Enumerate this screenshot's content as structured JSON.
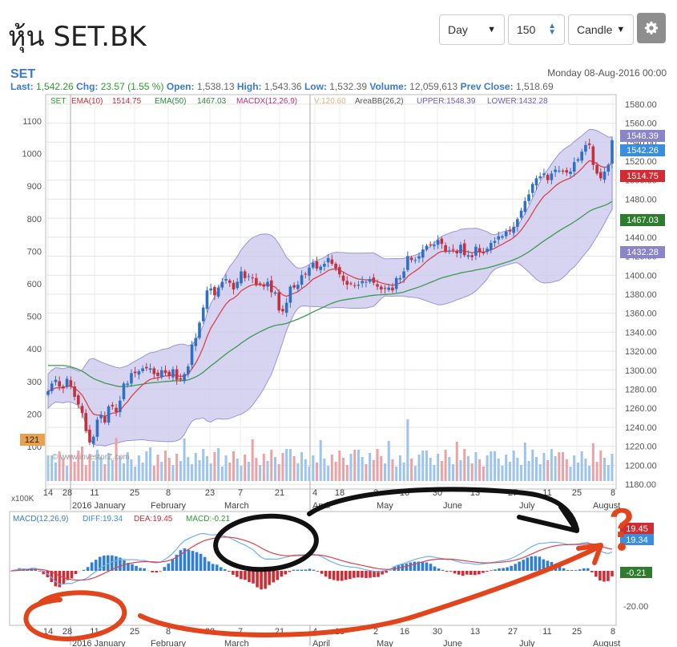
{
  "header": {
    "title": "หุ้น SET.BK",
    "period": "Day",
    "count": "150",
    "chart_style": "Candle"
  },
  "quote": {
    "symbol": "SET",
    "date": "Monday 08-Aug-2016 00:00",
    "last_label": "Last:",
    "last": "1,542.26",
    "chg_label": "Chg:",
    "chg": "23.57 (1.55 %)",
    "open_label": "Open:",
    "open": "1,538.13",
    "high_label": "High:",
    "high": "1,543.36",
    "low_label": "Low:",
    "low": "1,532.39",
    "volume_label": "Volume:",
    "volume": "12,059,613",
    "prev_label": "Prev Close:",
    "prev": "1,518.69"
  },
  "legend": {
    "set": "SET",
    "ema10_label": "EMA(10)",
    "ema10_val": "1514.75",
    "ema50_label": "EMA(50)",
    "ema50_val": "1467.03",
    "macdx_label": "MACDX(12,26,9)",
    "v_label": "V:120.60",
    "bb_label": "AreaBB(26,2)",
    "upper_label": "UPPER:1548.39",
    "lower_label": "LOWER:1432.28"
  },
  "markers": {
    "upper": "1548.39",
    "last": "1542.26",
    "ema10": "1514.75",
    "ema50": "1467.03",
    "lower": "1432.28",
    "volume": "121",
    "x100k": "x100K",
    "watermark": "© www.investorZ.com"
  },
  "macd_legend": {
    "macd": "MACD(12,26,9)",
    "diff": "DIFF:19.34",
    "dea": "DEA:19.45",
    "macd_val": "MACD:-0.21"
  },
  "macd_markers": {
    "dea": "19.45",
    "diff": "19.34",
    "macd": "-0.21",
    "tick": "-20.00"
  },
  "annotations": {
    "question": "?"
  },
  "colors": {
    "accent": "#3a7bc8",
    "up": "#2f6fc7",
    "down": "#c5303a",
    "ema10": "#d9434c",
    "ema50": "#3c9a4e",
    "bb_fill": "#c9c6ec",
    "annotation_red": "#e2441c"
  },
  "chart_data": [
    {
      "type": "candlestick",
      "title": "SET",
      "x_ticks": [
        "14",
        "28",
        "11",
        "25",
        "8",
        "23",
        "7",
        "21",
        "4",
        "18",
        "2",
        "16",
        "30",
        "13",
        "27",
        "11",
        "25",
        "8"
      ],
      "month_labels": [
        "2016 January",
        "February",
        "March",
        "April",
        "May",
        "June",
        "July",
        "August"
      ],
      "y_right_ticks": [
        1580,
        1560,
        1540,
        1520,
        1500,
        1480,
        1460,
        1440,
        1420,
        1400,
        1380,
        1360,
        1340,
        1320,
        1300,
        1280,
        1260,
        1240,
        1220,
        1200,
        1180
      ],
      "y_left_ticks": [
        1100,
        1000,
        900,
        800,
        700,
        600,
        500,
        400,
        300,
        200,
        100
      ],
      "ylim": [
        1175,
        1590
      ],
      "series": [
        {
          "name": "EMA(10)",
          "last": 1514.75
        },
        {
          "name": "EMA(50)",
          "last": 1467.03
        },
        {
          "name": "AreaBB(26,2)",
          "upper": 1548.39,
          "lower": 1432.28
        }
      ],
      "close": [
        1278,
        1286,
        1290,
        1283,
        1281,
        1291,
        1283,
        1272,
        1264,
        1255,
        1236,
        1224,
        1230,
        1248,
        1253,
        1245,
        1262,
        1262,
        1256,
        1268,
        1286,
        1286,
        1297,
        1297,
        1299,
        1302,
        1302,
        1302,
        1296,
        1294,
        1300,
        1297,
        1294,
        1301,
        1290,
        1290,
        1296,
        1304,
        1327,
        1334,
        1350,
        1366,
        1384,
        1386,
        1379,
        1387,
        1393,
        1396,
        1392,
        1385,
        1393,
        1404,
        1397,
        1399,
        1397,
        1390,
        1391,
        1388,
        1393,
        1382,
        1382,
        1363,
        1362,
        1371,
        1388,
        1387,
        1390,
        1400,
        1401,
        1408,
        1413,
        1407,
        1409,
        1412,
        1418,
        1412,
        1407,
        1401,
        1394,
        1390,
        1391,
        1389,
        1390,
        1394,
        1393,
        1396,
        1392,
        1388,
        1385,
        1386,
        1387,
        1384,
        1397,
        1397,
        1404,
        1420,
        1416,
        1416,
        1420,
        1427,
        1431,
        1432,
        1432,
        1437,
        1433,
        1425,
        1426,
        1427,
        1423,
        1432,
        1421,
        1421,
        1419,
        1430,
        1424,
        1423,
        1428,
        1434,
        1436,
        1441,
        1441,
        1446,
        1446,
        1451,
        1459,
        1468,
        1478,
        1485,
        1496,
        1502,
        1504,
        1507,
        1500,
        1507,
        1511,
        1510,
        1509,
        1508,
        1509,
        1519,
        1522,
        1530,
        1537,
        1537,
        1516,
        1507,
        1502,
        1509,
        1516,
        1542
      ]
    },
    {
      "type": "bar",
      "title": "Volume",
      "unit": "x100K",
      "last": 121
    },
    {
      "type": "line",
      "title": "MACD(12,26,9)",
      "series": [
        {
          "name": "DIFF",
          "last": 19.34
        },
        {
          "name": "DEA",
          "last": 19.45
        },
        {
          "name": "MACD",
          "last": -0.21
        }
      ],
      "y_ticks": [
        -20.0
      ]
    }
  ]
}
